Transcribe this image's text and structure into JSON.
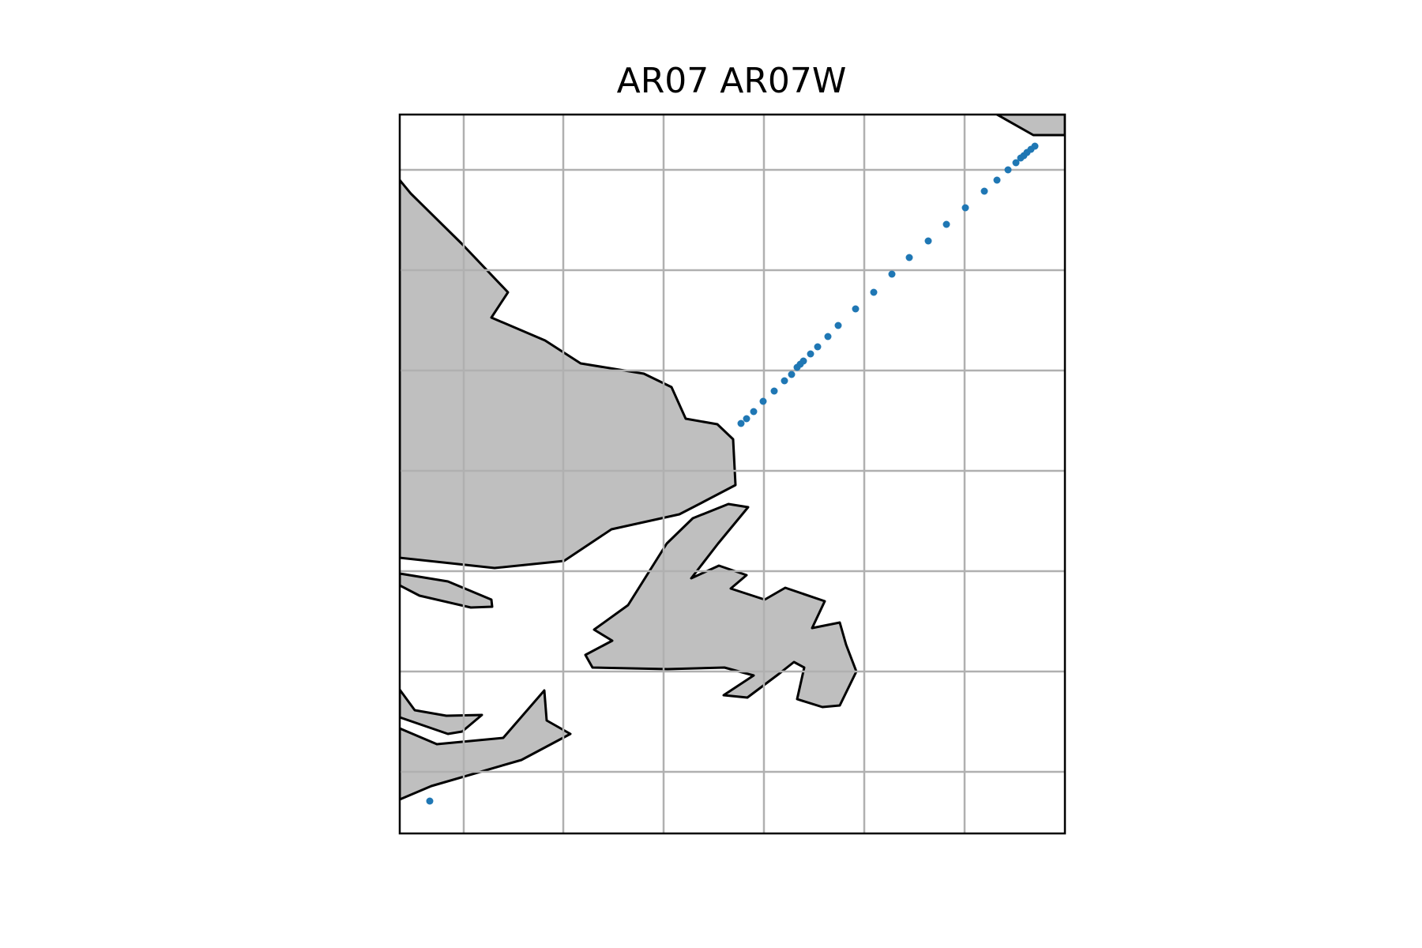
{
  "title": "AR07 AR07W",
  "map": {
    "land_color": "#bfbfbf",
    "coastline_color": "#000000",
    "gridlines": true,
    "grid_color": "#b0b0b0",
    "background": "#ffffff"
  },
  "track": {
    "marker_color": "#1f77b4",
    "station_count": 37
  }
}
